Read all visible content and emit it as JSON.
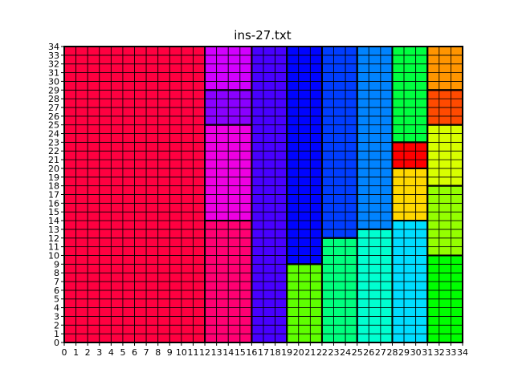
{
  "chart_data": {
    "type": "heatmap",
    "title": "ins-27.txt",
    "xlabel": "",
    "ylabel": "",
    "xlim": [
      0,
      34
    ],
    "ylim": [
      0,
      34
    ],
    "x_ticks": [
      "0",
      "1",
      "2",
      "3",
      "4",
      "5",
      "6",
      "7",
      "8",
      "9",
      "10",
      "11",
      "12",
      "13",
      "14",
      "15",
      "16",
      "17",
      "18",
      "19",
      "20",
      "21",
      "22",
      "23",
      "24",
      "25",
      "26",
      "27",
      "28",
      "29",
      "30",
      "31",
      "32",
      "33",
      "34"
    ],
    "y_ticks": [
      "0",
      "1",
      "2",
      "3",
      "4",
      "5",
      "6",
      "7",
      "8",
      "9",
      "10",
      "11",
      "12",
      "13",
      "14",
      "15",
      "16",
      "17",
      "18",
      "19",
      "20",
      "21",
      "22",
      "23",
      "24",
      "25",
      "26",
      "27",
      "28",
      "29",
      "30",
      "31",
      "32",
      "33",
      "34"
    ],
    "grid": true,
    "grid_color": "#000000",
    "rectangles": [
      {
        "x0": 0,
        "x1": 12,
        "y0": 0,
        "y1": 34,
        "color": "#ff0040"
      },
      {
        "x0": 12,
        "x1": 16,
        "y0": 29,
        "y1": 34,
        "color": "#d200ff"
      },
      {
        "x0": 12,
        "x1": 16,
        "y0": 25,
        "y1": 29,
        "color": "#8a00ff"
      },
      {
        "x0": 12,
        "x1": 16,
        "y0": 14,
        "y1": 25,
        "color": "#ee00e2"
      },
      {
        "x0": 12,
        "x1": 16,
        "y0": 0,
        "y1": 14,
        "color": "#ff0072"
      },
      {
        "x0": 16,
        "x1": 19,
        "y0": 0,
        "y1": 34,
        "color": "#4800ff"
      },
      {
        "x0": 19,
        "x1": 22,
        "y0": 9,
        "y1": 34,
        "color": "#0004ff"
      },
      {
        "x0": 19,
        "x1": 22,
        "y0": 0,
        "y1": 9,
        "color": "#5eff00"
      },
      {
        "x0": 22,
        "x1": 25,
        "y0": 12,
        "y1": 34,
        "color": "#003dff"
      },
      {
        "x0": 22,
        "x1": 25,
        "y0": 0,
        "y1": 12,
        "color": "#00ff7e"
      },
      {
        "x0": 25,
        "x1": 28,
        "y0": 13,
        "y1": 34,
        "color": "#0083ff"
      },
      {
        "x0": 25,
        "x1": 28,
        "y0": 0,
        "y1": 13,
        "color": "#00ffd0"
      },
      {
        "x0": 28,
        "x1": 31,
        "y0": 23,
        "y1": 34,
        "color": "#00ff40"
      },
      {
        "x0": 28,
        "x1": 31,
        "y0": 20,
        "y1": 23,
        "color": "#ff0000"
      },
      {
        "x0": 28,
        "x1": 31,
        "y0": 14,
        "y1": 20,
        "color": "#ffd800"
      },
      {
        "x0": 28,
        "x1": 31,
        "y0": 0,
        "y1": 14,
        "color": "#00ddff"
      },
      {
        "x0": 31,
        "x1": 34,
        "y0": 29,
        "y1": 34,
        "color": "#ff9500"
      },
      {
        "x0": 31,
        "x1": 34,
        "y0": 25,
        "y1": 29,
        "color": "#ff4a00"
      },
      {
        "x0": 31,
        "x1": 34,
        "y0": 18,
        "y1": 25,
        "color": "#d8ff00"
      },
      {
        "x0": 31,
        "x1": 34,
        "y0": 10,
        "y1": 18,
        "color": "#94ff00"
      },
      {
        "x0": 31,
        "x1": 34,
        "y0": 0,
        "y1": 10,
        "color": "#00ff00"
      }
    ]
  }
}
